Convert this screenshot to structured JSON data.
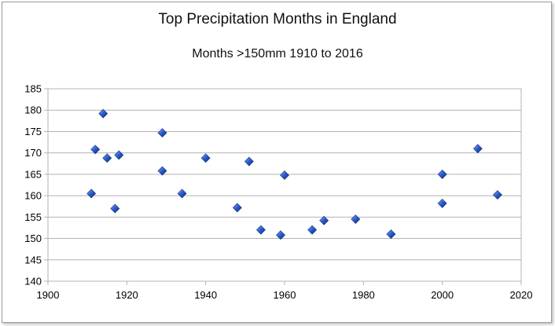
{
  "chart_data": {
    "type": "scatter",
    "title": "Top Precipitation Months in England",
    "subtitle": "Months >150mm 1910 to 2016",
    "xlabel": "",
    "ylabel": "",
    "xlim": [
      1900,
      2020
    ],
    "ylim": [
      140,
      185
    ],
    "xticks": [
      1900,
      1920,
      1940,
      1960,
      1980,
      2000,
      2020
    ],
    "yticks": [
      140,
      145,
      150,
      155,
      160,
      165,
      170,
      175,
      180,
      185
    ],
    "grid": true,
    "legend": "none",
    "marker_color": "#2f5fd0",
    "points": [
      {
        "x": 1911,
        "y": 160.5
      },
      {
        "x": 1912,
        "y": 170.8
      },
      {
        "x": 1914,
        "y": 179.2
      },
      {
        "x": 1915,
        "y": 168.8
      },
      {
        "x": 1917,
        "y": 157.0
      },
      {
        "x": 1918,
        "y": 169.5
      },
      {
        "x": 1929,
        "y": 174.7
      },
      {
        "x": 1929,
        "y": 165.8
      },
      {
        "x": 1934,
        "y": 160.5
      },
      {
        "x": 1940,
        "y": 168.8
      },
      {
        "x": 1948,
        "y": 157.2
      },
      {
        "x": 1951,
        "y": 168.0
      },
      {
        "x": 1954,
        "y": 152.0
      },
      {
        "x": 1959,
        "y": 150.8
      },
      {
        "x": 1960,
        "y": 164.8
      },
      {
        "x": 1967,
        "y": 152.0
      },
      {
        "x": 1970,
        "y": 154.2
      },
      {
        "x": 1978,
        "y": 154.5
      },
      {
        "x": 1987,
        "y": 151.0
      },
      {
        "x": 2000,
        "y": 165.0
      },
      {
        "x": 2000,
        "y": 158.2
      },
      {
        "x": 2009,
        "y": 171.0
      },
      {
        "x": 2014,
        "y": 160.2
      }
    ]
  }
}
